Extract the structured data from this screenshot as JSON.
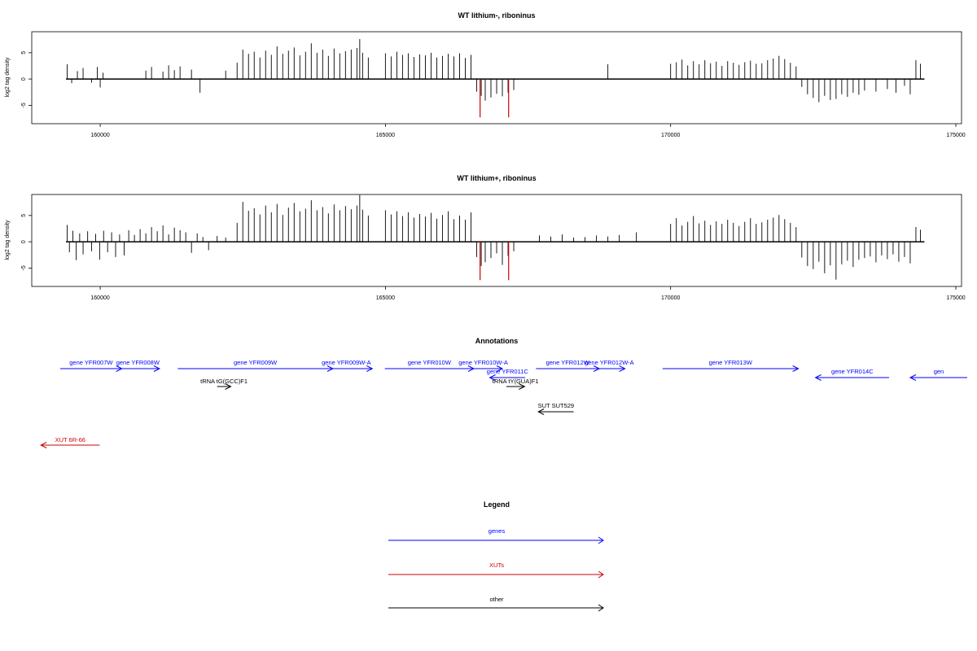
{
  "chart_data": [
    {
      "type": "bar",
      "title": "WT lithium-, riboninus",
      "xlabel": "",
      "ylabel": "log2 tag density",
      "xlim": [
        158800,
        175100
      ],
      "ylim": [
        -8.5,
        9
      ],
      "x_ticks": [
        "160000",
        "165000",
        "170000",
        "175000"
      ],
      "y_ticks": [
        "-5",
        "0",
        "5"
      ],
      "baseline_range": [
        159400,
        174450
      ],
      "highlight_color": "#cc0000",
      "series_color": "#000000",
      "bars": [
        [
          159420,
          2.8
        ],
        [
          159500,
          -0.8
        ],
        [
          159600,
          1.5
        ],
        [
          159700,
          2.1
        ],
        [
          159850,
          -0.7
        ],
        [
          159950,
          2.3
        ],
        [
          160000,
          -1.6
        ],
        [
          160050,
          1.2
        ],
        [
          160800,
          1.6
        ],
        [
          160900,
          2.3
        ],
        [
          161100,
          1.4
        ],
        [
          161200,
          2.6
        ],
        [
          161300,
          1.7
        ],
        [
          161400,
          2.4
        ],
        [
          161600,
          1.8
        ],
        [
          161750,
          -2.6
        ],
        [
          162200,
          1.6
        ],
        [
          162400,
          3.1
        ],
        [
          162500,
          5.6
        ],
        [
          162600,
          4.8
        ],
        [
          162700,
          5.2
        ],
        [
          162800,
          4.1
        ],
        [
          162900,
          5.4
        ],
        [
          163000,
          4.6
        ],
        [
          163100,
          6.2
        ],
        [
          163200,
          4.8
        ],
        [
          163300,
          5.4
        ],
        [
          163400,
          6.0
        ],
        [
          163500,
          4.5
        ],
        [
          163600,
          5.2
        ],
        [
          163700,
          6.8
        ],
        [
          163800,
          5.0
        ],
        [
          163900,
          5.6
        ],
        [
          164000,
          4.4
        ],
        [
          164100,
          5.8
        ],
        [
          164200,
          4.9
        ],
        [
          164300,
          5.3
        ],
        [
          164400,
          5.6
        ],
        [
          164500,
          5.9
        ],
        [
          164550,
          7.6
        ],
        [
          164600,
          5.0
        ],
        [
          164700,
          4.1
        ],
        [
          165000,
          4.9
        ],
        [
          165100,
          4.3
        ],
        [
          165200,
          5.2
        ],
        [
          165300,
          4.6
        ],
        [
          165400,
          4.9
        ],
        [
          165500,
          4.2
        ],
        [
          165600,
          4.7
        ],
        [
          165700,
          4.5
        ],
        [
          165800,
          5.0
        ],
        [
          165900,
          4.1
        ],
        [
          166000,
          4.4
        ],
        [
          166100,
          4.8
        ],
        [
          166200,
          4.3
        ],
        [
          166300,
          4.9
        ],
        [
          166400,
          4.0
        ],
        [
          166500,
          4.6
        ],
        [
          166600,
          -2.4
        ],
        [
          166680,
          -3.2
        ],
        [
          166750,
          -4.1
        ],
        [
          166850,
          -3.5
        ],
        [
          166950,
          -2.8
        ],
        [
          167050,
          -3.3
        ],
        [
          167150,
          -2.6
        ],
        [
          167250,
          -2.1
        ],
        [
          168900,
          2.8
        ],
        [
          170000,
          2.9
        ],
        [
          170100,
          3.2
        ],
        [
          170200,
          3.7
        ],
        [
          170300,
          2.6
        ],
        [
          170400,
          3.4
        ],
        [
          170500,
          2.8
        ],
        [
          170600,
          3.6
        ],
        [
          170700,
          3.0
        ],
        [
          170800,
          3.3
        ],
        [
          170900,
          2.5
        ],
        [
          171000,
          3.4
        ],
        [
          171100,
          3.1
        ],
        [
          171200,
          2.7
        ],
        [
          171300,
          3.2
        ],
        [
          171400,
          3.5
        ],
        [
          171500,
          2.9
        ],
        [
          171600,
          3.0
        ],
        [
          171700,
          3.6
        ],
        [
          171800,
          3.9
        ],
        [
          171900,
          4.4
        ],
        [
          172000,
          3.8
        ],
        [
          172100,
          3.1
        ],
        [
          172200,
          2.4
        ],
        [
          172300,
          -1.5
        ],
        [
          172400,
          -2.9
        ],
        [
          172500,
          -3.6
        ],
        [
          172600,
          -4.4
        ],
        [
          172700,
          -3.2
        ],
        [
          172800,
          -4.0
        ],
        [
          172900,
          -3.8
        ],
        [
          173000,
          -2.9
        ],
        [
          173100,
          -3.4
        ],
        [
          173200,
          -2.6
        ],
        [
          173300,
          -3.0
        ],
        [
          173400,
          -2.2
        ],
        [
          173600,
          -2.4
        ],
        [
          173800,
          -1.9
        ],
        [
          173950,
          -2.6
        ],
        [
          174100,
          -1.3
        ],
        [
          174200,
          -2.9
        ],
        [
          174300,
          3.6
        ],
        [
          174380,
          2.9
        ]
      ],
      "highlight_bars": [
        [
          166660,
          -7.3
        ],
        [
          167160,
          -7.3
        ]
      ]
    },
    {
      "type": "bar",
      "title": "WT lithium+, riboninus",
      "xlabel": "",
      "ylabel": "log2 tag density",
      "xlim": [
        158800,
        175100
      ],
      "ylim": [
        -8.5,
        9
      ],
      "x_ticks": [
        "160000",
        "165000",
        "170000",
        "175000"
      ],
      "y_ticks": [
        "-5",
        "0",
        "5"
      ],
      "baseline_range": [
        159400,
        174450
      ],
      "highlight_color": "#cc0000",
      "series_color": "#000000",
      "bars": [
        [
          159420,
          3.2
        ],
        [
          159460,
          -2.0
        ],
        [
          159520,
          2.1
        ],
        [
          159580,
          -3.5
        ],
        [
          159640,
          1.6
        ],
        [
          159700,
          -2.4
        ],
        [
          159780,
          2.0
        ],
        [
          159850,
          -1.8
        ],
        [
          159920,
          1.5
        ],
        [
          159990,
          -3.4
        ],
        [
          160060,
          2.1
        ],
        [
          160130,
          -2.0
        ],
        [
          160200,
          1.8
        ],
        [
          160270,
          -2.9
        ],
        [
          160340,
          1.4
        ],
        [
          160420,
          -2.6
        ],
        [
          160500,
          2.2
        ],
        [
          160600,
          1.3
        ],
        [
          160700,
          2.4
        ],
        [
          160800,
          1.6
        ],
        [
          160900,
          2.8
        ],
        [
          161000,
          2.0
        ],
        [
          161100,
          3.1
        ],
        [
          161200,
          1.4
        ],
        [
          161300,
          2.7
        ],
        [
          161400,
          2.2
        ],
        [
          161500,
          1.8
        ],
        [
          161600,
          -2.1
        ],
        [
          161700,
          1.6
        ],
        [
          161800,
          0.9
        ],
        [
          161900,
          -1.6
        ],
        [
          162050,
          1.1
        ],
        [
          162200,
          0.8
        ],
        [
          162400,
          3.6
        ],
        [
          162500,
          7.6
        ],
        [
          162600,
          5.9
        ],
        [
          162700,
          6.4
        ],
        [
          162800,
          5.2
        ],
        [
          162900,
          6.9
        ],
        [
          163000,
          5.6
        ],
        [
          163100,
          7.2
        ],
        [
          163200,
          5.1
        ],
        [
          163300,
          6.5
        ],
        [
          163400,
          7.4
        ],
        [
          163500,
          5.8
        ],
        [
          163600,
          6.3
        ],
        [
          163700,
          7.9
        ],
        [
          163800,
          6.0
        ],
        [
          163900,
          6.6
        ],
        [
          164000,
          5.4
        ],
        [
          164100,
          7.1
        ],
        [
          164200,
          6.0
        ],
        [
          164300,
          6.8
        ],
        [
          164400,
          6.2
        ],
        [
          164500,
          6.9
        ],
        [
          164550,
          8.9
        ],
        [
          164600,
          6.1
        ],
        [
          164700,
          5.0
        ],
        [
          165000,
          6.0
        ],
        [
          165100,
          5.2
        ],
        [
          165200,
          5.8
        ],
        [
          165300,
          4.9
        ],
        [
          165400,
          5.6
        ],
        [
          165500,
          4.6
        ],
        [
          165600,
          5.3
        ],
        [
          165700,
          4.8
        ],
        [
          165800,
          5.5
        ],
        [
          165900,
          4.4
        ],
        [
          166000,
          5.1
        ],
        [
          166100,
          5.8
        ],
        [
          166200,
          4.3
        ],
        [
          166300,
          5.0
        ],
        [
          166400,
          4.2
        ],
        [
          166500,
          5.6
        ],
        [
          166600,
          -2.9
        ],
        [
          166680,
          -4.6
        ],
        [
          166750,
          -3.9
        ],
        [
          166850,
          -3.1
        ],
        [
          166950,
          -2.2
        ],
        [
          167050,
          -4.4
        ],
        [
          167150,
          -2.7
        ],
        [
          167250,
          -1.8
        ],
        [
          167700,
          1.2
        ],
        [
          167900,
          1.0
        ],
        [
          168100,
          1.4
        ],
        [
          168300,
          0.8
        ],
        [
          168500,
          0.9
        ],
        [
          168700,
          1.2
        ],
        [
          168900,
          1.0
        ],
        [
          169100,
          1.3
        ],
        [
          169400,
          1.8
        ],
        [
          170000,
          3.4
        ],
        [
          170100,
          4.5
        ],
        [
          170200,
          3.1
        ],
        [
          170300,
          3.8
        ],
        [
          170400,
          4.9
        ],
        [
          170500,
          3.5
        ],
        [
          170600,
          4.0
        ],
        [
          170700,
          3.2
        ],
        [
          170800,
          3.9
        ],
        [
          170900,
          3.4
        ],
        [
          171000,
          4.2
        ],
        [
          171100,
          3.6
        ],
        [
          171200,
          3.0
        ],
        [
          171300,
          3.8
        ],
        [
          171400,
          4.5
        ],
        [
          171500,
          3.4
        ],
        [
          171600,
          3.7
        ],
        [
          171700,
          4.2
        ],
        [
          171800,
          4.6
        ],
        [
          171900,
          5.1
        ],
        [
          172000,
          4.3
        ],
        [
          172100,
          3.6
        ],
        [
          172200,
          2.8
        ],
        [
          172300,
          -3.0
        ],
        [
          172400,
          -4.6
        ],
        [
          172500,
          -5.2
        ],
        [
          172600,
          -3.8
        ],
        [
          172700,
          -6.0
        ],
        [
          172800,
          -4.5
        ],
        [
          172900,
          -7.2
        ],
        [
          173000,
          -4.3
        ],
        [
          173100,
          -3.6
        ],
        [
          173200,
          -4.8
        ],
        [
          173300,
          -3.4
        ],
        [
          173400,
          -3.1
        ],
        [
          173500,
          -2.8
        ],
        [
          173600,
          -3.9
        ],
        [
          173700,
          -2.6
        ],
        [
          173800,
          -3.3
        ],
        [
          173900,
          -2.4
        ],
        [
          174000,
          -3.8
        ],
        [
          174100,
          -2.9
        ],
        [
          174200,
          -4.1
        ],
        [
          174300,
          2.8
        ],
        [
          174380,
          2.3
        ]
      ],
      "highlight_bars": [
        [
          166660,
          -7.3
        ],
        [
          167160,
          -7.3
        ]
      ]
    }
  ],
  "annotations": {
    "title": "Annotations",
    "xlim": [
      158800,
      175100
    ],
    "items": [
      {
        "label": "gene YFR007W",
        "start": 159300,
        "end": 160380,
        "row": 0,
        "strand": "+",
        "color": "#0000ff"
      },
      {
        "label": "gene YFR008W",
        "start": 160280,
        "end": 161040,
        "row": 0,
        "strand": "+",
        "color": "#0000ff"
      },
      {
        "label": "gene YFR009W",
        "start": 161360,
        "end": 164080,
        "row": 0,
        "strand": "+",
        "color": "#0000ff"
      },
      {
        "label": "gene YFR009W-A",
        "start": 163860,
        "end": 164770,
        "row": 0,
        "strand": "+",
        "color": "#0000ff"
      },
      {
        "label": "gene YFR010W",
        "start": 164990,
        "end": 166550,
        "row": 0,
        "strand": "+",
        "color": "#0000ff"
      },
      {
        "label": "gene YFR010W-A",
        "start": 166380,
        "end": 167050,
        "row": 0,
        "strand": "+",
        "color": "#0000ff"
      },
      {
        "label": "gene YFR012W",
        "start": 167640,
        "end": 168750,
        "row": 0,
        "strand": "+",
        "color": "#0000ff"
      },
      {
        "label": "gene YFR012W-A",
        "start": 168650,
        "end": 169200,
        "row": 0,
        "strand": "+",
        "color": "#0000ff"
      },
      {
        "label": "gene YFR013W",
        "start": 169860,
        "end": 172240,
        "row": 0,
        "strand": "+",
        "color": "#0000ff"
      },
      {
        "label": "gene YFR014C",
        "start": 172540,
        "end": 173830,
        "row": 1,
        "strand": "-",
        "color": "#0000ff"
      },
      {
        "label": "gen",
        "start": 174200,
        "end": 175200,
        "row": 1,
        "strand": "-",
        "color": "#0000ff"
      },
      {
        "label": "gene YFR011C",
        "start": 166830,
        "end": 167450,
        "row": 1,
        "strand": "-",
        "color": "#0000ff"
      },
      {
        "label": "tRNA tG(GCC)F1",
        "start": 162050,
        "end": 162290,
        "row": 2,
        "strand": "+",
        "color": "#000000"
      },
      {
        "label": "tRNA tY(GUA)F1",
        "start": 167120,
        "end": 167440,
        "row": 2,
        "strand": "+",
        "color": "#000000"
      },
      {
        "label": "SUT SUT529",
        "start": 167680,
        "end": 168300,
        "row": 3,
        "strand": "-",
        "color": "#000000"
      },
      {
        "label": "XUT 6R-66",
        "start": 158960,
        "end": 159990,
        "row": 4,
        "strand": "-",
        "color": "#cc0000"
      }
    ]
  },
  "legend": {
    "title": "Legend",
    "items": [
      {
        "label": "genes",
        "color": "#0000ff"
      },
      {
        "label": "XUTs",
        "color": "#cc0000"
      },
      {
        "label": "other",
        "color": "#000000"
      }
    ]
  }
}
